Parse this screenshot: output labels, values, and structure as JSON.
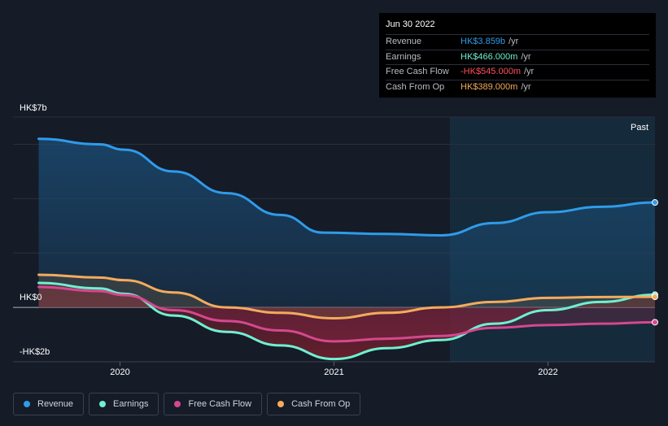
{
  "tooltip": {
    "date": "Jun 30 2022",
    "rows": [
      {
        "label": "Revenue",
        "value": "HK$3.859b",
        "unit": "/yr",
        "color": "#2f9bea"
      },
      {
        "label": "Earnings",
        "value": "HK$466.000m",
        "unit": "/yr",
        "color": "#6ff0d0"
      },
      {
        "label": "Free Cash Flow",
        "value": "-HK$545.000m",
        "unit": "/yr",
        "color": "#ff4d5e"
      },
      {
        "label": "Cash From Op",
        "value": "HK$389.000m",
        "unit": "/yr",
        "color": "#f4ab5c"
      }
    ]
  },
  "legend": [
    {
      "label": "Revenue",
      "color": "#2f9bea"
    },
    {
      "label": "Earnings",
      "color": "#6ff0d0"
    },
    {
      "label": "Free Cash Flow",
      "color": "#d4488f"
    },
    {
      "label": "Cash From Op",
      "color": "#f4ab5c"
    }
  ],
  "chart_data": {
    "type": "area",
    "y_labels": [
      "HK$7b",
      "HK$0",
      "-HK$2b"
    ],
    "past_label": "Past",
    "x_ticks": [
      {
        "label": "2020",
        "x": 2020.0
      },
      {
        "label": "2021",
        "x": 2021.0
      },
      {
        "label": "2022",
        "x": 2022.0
      }
    ],
    "ylim": [
      -2,
      7
    ],
    "xlim": [
      2019.5,
      2022.5
    ],
    "series": [
      {
        "name": "Revenue",
        "color": "#2f9bea",
        "x": [
          2019.62,
          2019.9,
          2020.02,
          2020.25,
          2020.5,
          2020.75,
          2020.95,
          2021.25,
          2021.5,
          2021.75,
          2022.0,
          2022.25,
          2022.5
        ],
        "y": [
          6.2,
          6.0,
          5.8,
          5.0,
          4.2,
          3.4,
          2.75,
          2.7,
          2.65,
          3.1,
          3.5,
          3.7,
          3.859
        ]
      },
      {
        "name": "Earnings",
        "color": "#6ff0d0",
        "x": [
          2019.62,
          2019.9,
          2020.02,
          2020.25,
          2020.5,
          2020.75,
          2021.0,
          2021.25,
          2021.5,
          2021.75,
          2022.0,
          2022.25,
          2022.5
        ],
        "y": [
          0.9,
          0.7,
          0.5,
          -0.3,
          -0.9,
          -1.4,
          -1.9,
          -1.5,
          -1.2,
          -0.6,
          -0.1,
          0.2,
          0.466
        ]
      },
      {
        "name": "Free Cash Flow",
        "color": "#d4488f",
        "x": [
          2019.62,
          2019.9,
          2020.02,
          2020.25,
          2020.5,
          2020.75,
          2021.0,
          2021.25,
          2021.5,
          2021.75,
          2022.0,
          2022.25,
          2022.5
        ],
        "y": [
          0.75,
          0.6,
          0.45,
          -0.1,
          -0.5,
          -0.85,
          -1.25,
          -1.15,
          -1.05,
          -0.75,
          -0.65,
          -0.6,
          -0.545
        ]
      },
      {
        "name": "Cash From Op",
        "color": "#f4ab5c",
        "x": [
          2019.62,
          2019.9,
          2020.02,
          2020.25,
          2020.5,
          2020.75,
          2021.0,
          2021.25,
          2021.5,
          2021.75,
          2022.0,
          2022.25,
          2022.5
        ],
        "y": [
          1.2,
          1.1,
          1.0,
          0.55,
          0.0,
          -0.2,
          -0.4,
          -0.2,
          0.0,
          0.2,
          0.35,
          0.38,
          0.389
        ]
      }
    ]
  }
}
